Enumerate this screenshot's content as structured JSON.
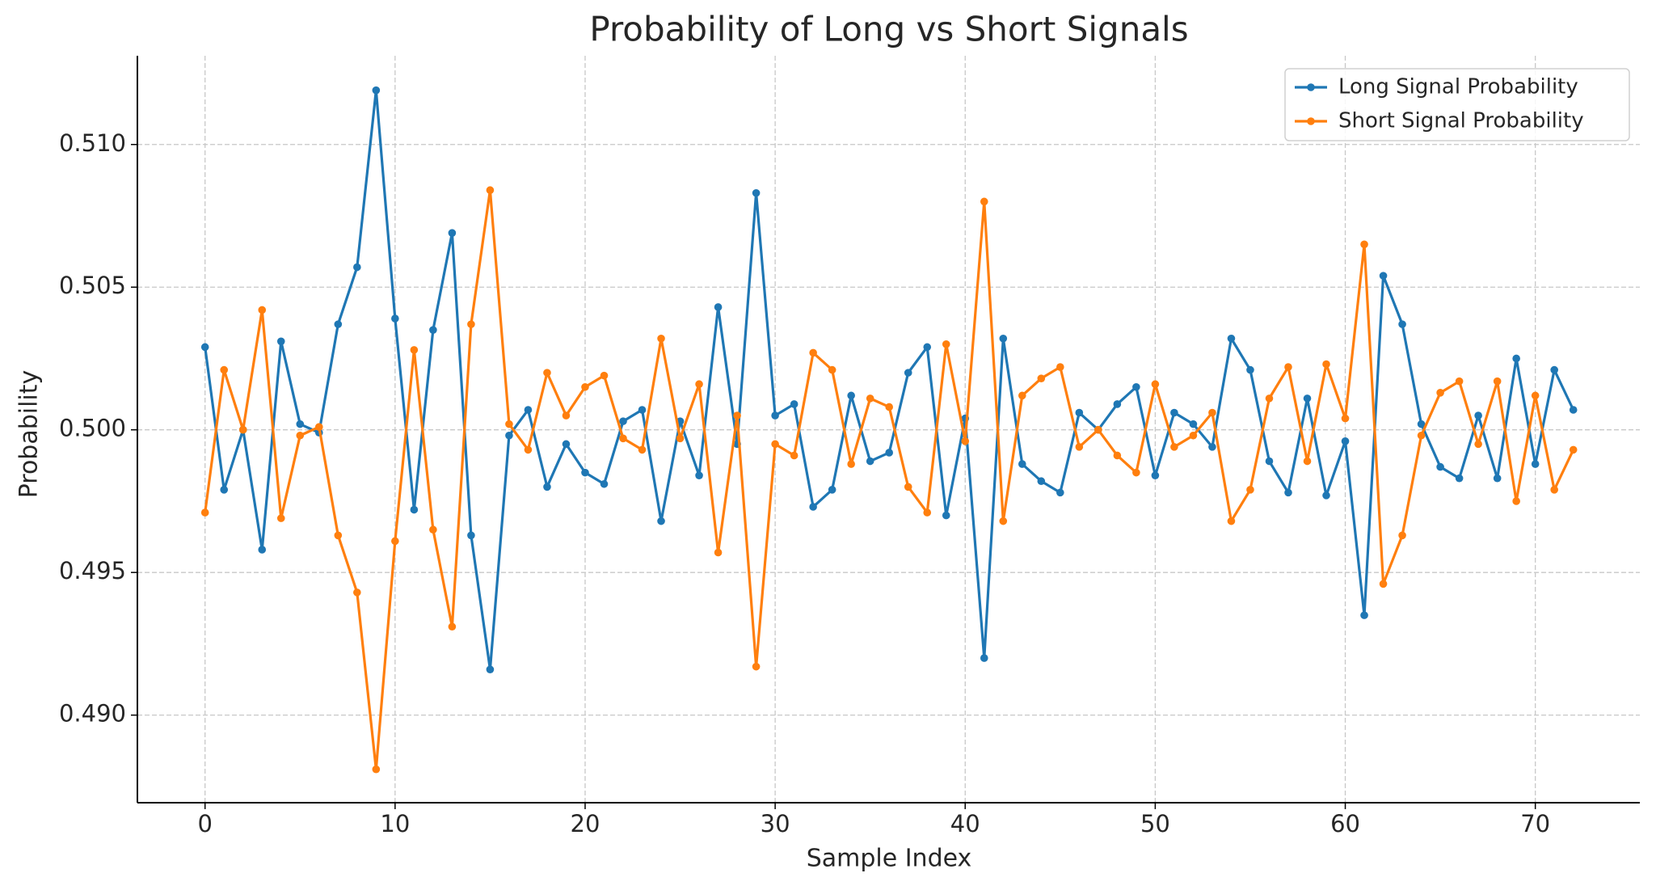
{
  "chart_data": {
    "type": "line",
    "title": "Probability of Long vs Short Signals",
    "x_label": "Sample Index",
    "y_label": "Probability",
    "x": [
      0,
      1,
      2,
      3,
      4,
      5,
      6,
      7,
      8,
      9,
      10,
      11,
      12,
      13,
      14,
      15,
      16,
      17,
      18,
      19,
      20,
      21,
      22,
      23,
      24,
      25,
      26,
      27,
      28,
      29,
      30,
      31,
      32,
      33,
      34,
      35,
      36,
      37,
      38,
      39,
      40,
      41,
      42,
      43,
      44,
      45,
      46,
      47,
      48,
      49,
      50,
      51,
      52,
      53,
      54,
      55,
      56,
      57,
      58,
      59,
      60,
      61,
      62,
      63,
      64,
      65,
      66,
      67,
      68,
      69,
      70,
      71,
      72
    ],
    "series": [
      {
        "name": "Long Signal Probability",
        "color": "#1f77b4",
        "values": [
          0.5029,
          0.4979,
          0.5,
          0.4958,
          0.5031,
          0.5002,
          0.4999,
          0.5037,
          0.5057,
          0.5119,
          0.5039,
          0.4972,
          0.5035,
          0.5069,
          0.4963,
          0.4916,
          0.4998,
          0.5007,
          0.498,
          0.4995,
          0.4985,
          0.4981,
          0.5003,
          0.5007,
          0.4968,
          0.5003,
          0.4984,
          0.5043,
          0.4995,
          0.5083,
          0.5005,
          0.5009,
          0.4973,
          0.4979,
          0.5012,
          0.4989,
          0.4992,
          0.502,
          0.5029,
          0.497,
          0.5004,
          0.492,
          0.5032,
          0.4988,
          0.4982,
          0.4978,
          0.5006,
          0.5,
          0.5009,
          0.5015,
          0.4984,
          0.5006,
          0.5002,
          0.4994,
          0.5032,
          0.5021,
          0.4989,
          0.4978,
          0.5011,
          0.4977,
          0.4996,
          0.4935,
          0.5054,
          0.5037,
          0.5002,
          0.4987,
          0.4983,
          0.5005,
          0.4983,
          0.5025,
          0.4988,
          0.5021,
          0.5007
        ]
      },
      {
        "name": "Short Signal Probability",
        "color": "#ff7f0e",
        "values": [
          0.4971,
          0.5021,
          0.5,
          0.5042,
          0.4969,
          0.4998,
          0.5001,
          0.4963,
          0.4943,
          0.4881,
          0.4961,
          0.5028,
          0.4965,
          0.4931,
          0.5037,
          0.5084,
          0.5002,
          0.4993,
          0.502,
          0.5005,
          0.5015,
          0.5019,
          0.4997,
          0.4993,
          0.5032,
          0.4997,
          0.5016,
          0.4957,
          0.5005,
          0.4917,
          0.4995,
          0.4991,
          0.5027,
          0.5021,
          0.4988,
          0.5011,
          0.5008,
          0.498,
          0.4971,
          0.503,
          0.4996,
          0.508,
          0.4968,
          0.5012,
          0.5018,
          0.5022,
          0.4994,
          0.5,
          0.4991,
          0.4985,
          0.5016,
          0.4994,
          0.4998,
          0.5006,
          0.4968,
          0.4979,
          0.5011,
          0.5022,
          0.4989,
          0.5023,
          0.5004,
          0.5065,
          0.4946,
          0.4963,
          0.4998,
          0.5013,
          0.5017,
          0.4995,
          0.5017,
          0.4975,
          0.5012,
          0.4979,
          0.4993
        ]
      }
    ],
    "xlim": [
      -3.56,
      75.5
    ],
    "xticks": [
      0,
      10,
      20,
      30,
      40,
      50,
      60,
      70
    ],
    "ylim": [
      0.48693,
      0.51311
    ],
    "yticks": [
      {
        "value": 0.49,
        "label": "0.490"
      },
      0.495,
      {
        "value": 0.5,
        "label": "0.500"
      },
      0.505,
      {
        "value": 0.51,
        "label": "0.510"
      }
    ],
    "grid": true,
    "legend": "upper right"
  }
}
